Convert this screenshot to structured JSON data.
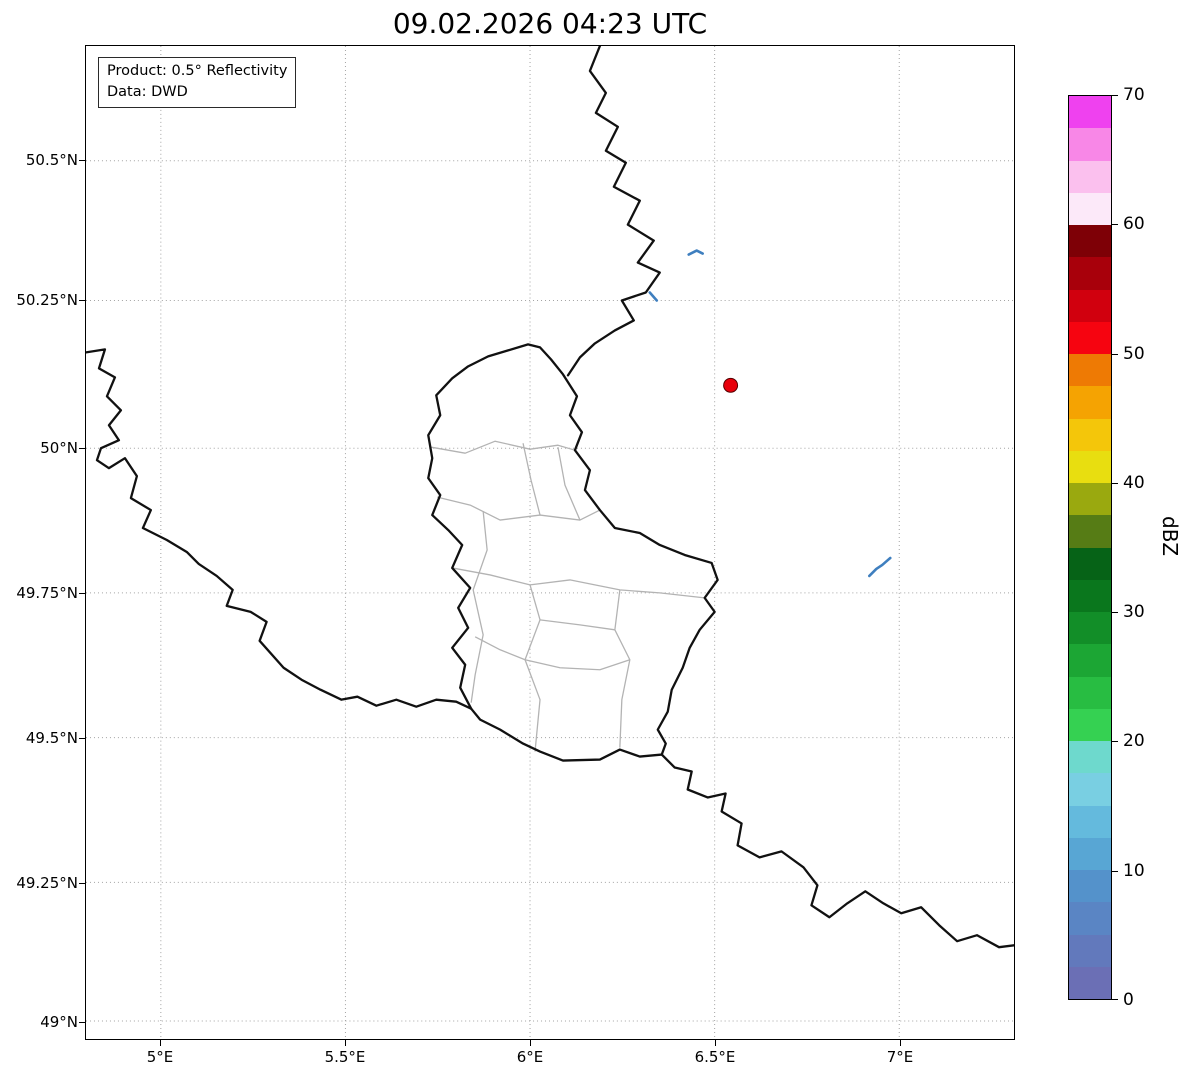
{
  "title": "09.02.2026 04:23 UTC",
  "info_box": {
    "line1": "Product: 0.5° Reflectivity",
    "line2": "Data: DWD"
  },
  "axes": {
    "lat_ticks": [
      "50.5°N",
      "50.25°N",
      "50°N",
      "49.75°N",
      "49.5°N",
      "49.25°N",
      "49°N"
    ],
    "lon_ticks": [
      "5°E",
      "5.5°E",
      "6°E",
      "6.5°E",
      "7°E"
    ]
  },
  "colorbar": {
    "label": "dBZ",
    "min": 0,
    "max": 70,
    "step": 2.5,
    "tick_labels": [
      "0",
      "10",
      "20",
      "30",
      "40",
      "50",
      "60",
      "70"
    ],
    "segment_colors_bottom_to_top": [
      "#6b6fb5",
      "#6279bc",
      "#5a85c4",
      "#5492cb",
      "#58a6d4",
      "#64badd",
      "#79cfe2",
      "#6ed9cd",
      "#35d152",
      "#28bd42",
      "#1ca634",
      "#128e28",
      "#0a771d",
      "#066317",
      "#567c15",
      "#9aa90f",
      "#e8de10",
      "#f4c60a",
      "#f5a302",
      "#ee7a04",
      "#f60410",
      "#d1000e",
      "#a8000b",
      "#7e0006",
      "#fce9f9",
      "#fbc0ee",
      "#f887e7",
      "#ef41ef"
    ]
  },
  "map": {
    "radar_site": {
      "color": "#e8000b"
    },
    "echo_color": "#3f7fbf",
    "border_color": "#111111",
    "admin_line_color": "#b3b3b3",
    "grid_color": "#999999"
  }
}
